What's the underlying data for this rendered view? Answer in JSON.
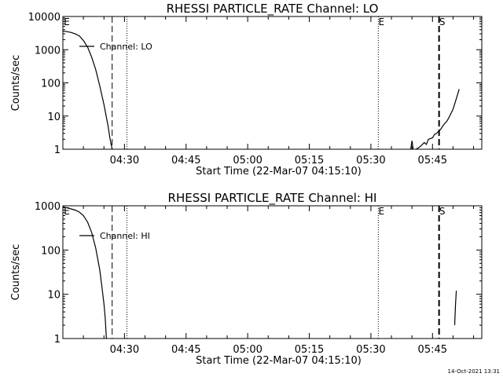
{
  "footer_timestamp": "14-Oct-2021 13:31",
  "chart_data": [
    {
      "type": "line",
      "title": "RHESSI PARTICLE_RATE Channel: LO",
      "xlabel": "Start Time (22-Mar-07 04:15:10)",
      "ylabel": "Counts/sec",
      "y_scale": "log",
      "ylim": [
        1,
        10000
      ],
      "y_ticks": [
        {
          "value": 1,
          "label": "1"
        },
        {
          "value": 10,
          "label": "10"
        },
        {
          "value": 100,
          "label": "100"
        },
        {
          "value": 1000,
          "label": "1000"
        },
        {
          "value": 10000,
          "label": "10000"
        }
      ],
      "xlim_minutes": [
        0,
        102
      ],
      "x_ticks": [
        {
          "minute": 15,
          "label": "04:30"
        },
        {
          "minute": 30,
          "label": "04:45"
        },
        {
          "minute": 45,
          "label": "05:00"
        },
        {
          "minute": 60,
          "label": "05:15"
        },
        {
          "minute": 75,
          "label": "05:30"
        },
        {
          "minute": 90,
          "label": "05:45"
        }
      ],
      "markers": [
        {
          "minute": 0.2,
          "label": "E",
          "style": "solid"
        },
        {
          "minute": 12.0,
          "label": "",
          "style": "dashed"
        },
        {
          "minute": 15.6,
          "label": "",
          "style": "dotted"
        },
        {
          "minute": 76.8,
          "label": "E",
          "style": "dotted"
        },
        {
          "minute": 91.6,
          "label": "S",
          "style": "dashed"
        }
      ],
      "legend": "Channel: LO",
      "legend_position": "top-left",
      "series": [
        {
          "name": "Channel: LO",
          "segments": [
            [
              [
                0,
                3600
              ],
              [
                1,
                3500
              ],
              [
                2,
                3300
              ],
              [
                3,
                3000
              ],
              [
                4,
                2600
              ],
              [
                5,
                1900
              ],
              [
                6,
                1200
              ],
              [
                7,
                600
              ],
              [
                8,
                250
              ],
              [
                9,
                80
              ],
              [
                10,
                22
              ],
              [
                11,
                5
              ],
              [
                11.5,
                2
              ],
              [
                12,
                1
              ]
            ],
            [
              [
                84.7,
                1
              ],
              [
                85,
                1.8
              ],
              [
                85.3,
                1
              ]
            ],
            [
              [
                86,
                1
              ],
              [
                87,
                1.2
              ],
              [
                88,
                1.6
              ],
              [
                88.5,
                1.4
              ],
              [
                89,
                2
              ],
              [
                90,
                2.2
              ],
              [
                90.5,
                2.8
              ],
              [
                91,
                3
              ],
              [
                91.5,
                3.5
              ],
              [
                92,
                4
              ],
              [
                92.5,
                5
              ],
              [
                93,
                6
              ],
              [
                93.5,
                7
              ],
              [
                94,
                9
              ],
              [
                94.5,
                12
              ],
              [
                95,
                16
              ],
              [
                95.5,
                25
              ],
              [
                96,
                40
              ],
              [
                96.5,
                65
              ]
            ]
          ]
        }
      ]
    },
    {
      "type": "line",
      "title": "RHESSI PARTICLE_RATE Channel: HI",
      "xlabel": "Start Time (22-Mar-07 04:15:10)",
      "ylabel": "Counts/sec",
      "y_scale": "log",
      "ylim": [
        1,
        1000
      ],
      "y_ticks": [
        {
          "value": 1,
          "label": "1"
        },
        {
          "value": 10,
          "label": "10"
        },
        {
          "value": 100,
          "label": "100"
        },
        {
          "value": 1000,
          "label": "1000"
        }
      ],
      "xlim_minutes": [
        0,
        102
      ],
      "x_ticks": [
        {
          "minute": 15,
          "label": "04:30"
        },
        {
          "minute": 30,
          "label": "04:45"
        },
        {
          "minute": 45,
          "label": "05:00"
        },
        {
          "minute": 60,
          "label": "05:15"
        },
        {
          "minute": 75,
          "label": "05:30"
        },
        {
          "minute": 90,
          "label": "05:45"
        }
      ],
      "markers": [
        {
          "minute": 0.2,
          "label": "E",
          "style": "solid"
        },
        {
          "minute": 12.0,
          "label": "",
          "style": "dashed"
        },
        {
          "minute": 15.6,
          "label": "",
          "style": "dotted"
        },
        {
          "minute": 76.8,
          "label": "E",
          "style": "dotted"
        },
        {
          "minute": 91.6,
          "label": "S",
          "style": "dashed"
        }
      ],
      "legend": "Channel: HI",
      "legend_position": "top-left",
      "series": [
        {
          "name": "Channel: HI",
          "segments": [
            [
              [
                0,
                950
              ],
              [
                1,
                900
              ],
              [
                2,
                850
              ],
              [
                3,
                800
              ],
              [
                4,
                720
              ],
              [
                5,
                600
              ],
              [
                6,
                430
              ],
              [
                7,
                250
              ],
              [
                8,
                110
              ],
              [
                9,
                35
              ],
              [
                9.5,
                15
              ],
              [
                10,
                6
              ],
              [
                10.3,
                3
              ],
              [
                10.6,
                1
              ]
            ],
            [
              [
                95.4,
                2
              ],
              [
                95.6,
                6
              ],
              [
                95.8,
                12
              ]
            ]
          ]
        }
      ]
    }
  ]
}
